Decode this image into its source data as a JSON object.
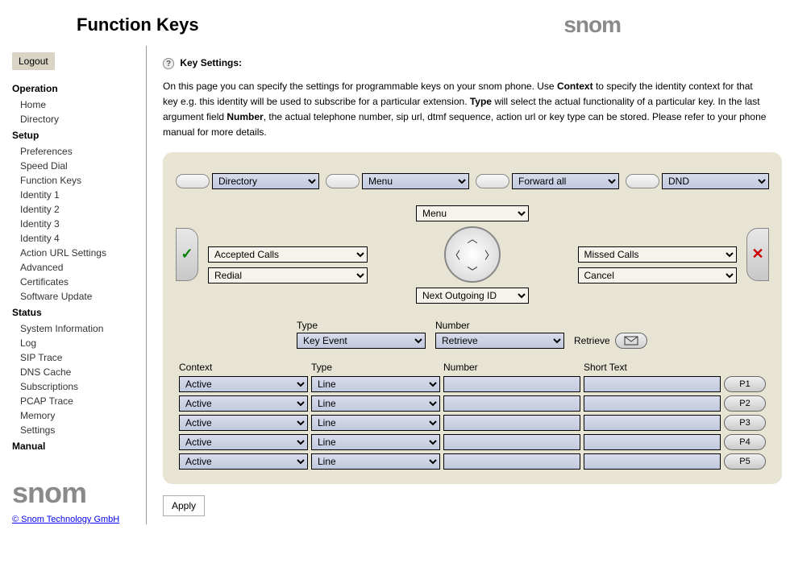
{
  "header": {
    "title": "Function Keys"
  },
  "logout": "Logout",
  "nav": {
    "operation": {
      "title": "Operation",
      "items": [
        "Home",
        "Directory"
      ]
    },
    "setup": {
      "title": "Setup",
      "items": [
        "Preferences",
        "Speed Dial",
        "Function Keys",
        "Identity 1",
        "Identity 2",
        "Identity 3",
        "Identity 4",
        "Action URL Settings",
        "Advanced",
        "Certificates",
        "Software Update"
      ]
    },
    "status": {
      "title": "Status",
      "items": [
        "System Information",
        "Log",
        "SIP Trace",
        "DNS Cache",
        "Subscriptions",
        "PCAP Trace",
        "Memory",
        "Settings"
      ]
    },
    "manual": {
      "title": "Manual"
    }
  },
  "copyright": "© Snom Technology GmbH",
  "section": {
    "heading": "Key Settings:",
    "intro_1": "On this page you can specify the settings for programmable keys on your snom phone. Use ",
    "intro_b1": "Context",
    "intro_2": " to specify the identity context for that key e.g. this identity will be used to subscribe for a particular extension. ",
    "intro_b2": "Type",
    "intro_3": " will select the actual functionality of a particular key. In the last argument field ",
    "intro_b3": "Number",
    "intro_4": ", the actual telephone number, sip url, dtmf sequence, action url or key type can be stored. Please refer to your phone manual for more details."
  },
  "top_fns": [
    "Directory",
    "Menu",
    "Forward all",
    "DND"
  ],
  "cluster": {
    "menu": "Menu",
    "accepted": "Accepted Calls",
    "missed": "Missed Calls",
    "redial": "Redial",
    "cancel": "Cancel",
    "next": "Next Outgoing ID"
  },
  "type_row": {
    "type_label": "Type",
    "type_value": "Key Event",
    "number_label": "Number",
    "number_value": "Retrieve",
    "retrieve_label": "Retrieve"
  },
  "grid": {
    "headers": [
      "Context",
      "Type",
      "Number",
      "Short Text"
    ],
    "rows": [
      {
        "context": "Active",
        "type": "Line",
        "number": "",
        "short": "",
        "btn": "P1"
      },
      {
        "context": "Active",
        "type": "Line",
        "number": "",
        "short": "",
        "btn": "P2"
      },
      {
        "context": "Active",
        "type": "Line",
        "number": "",
        "short": "",
        "btn": "P3"
      },
      {
        "context": "Active",
        "type": "Line",
        "number": "",
        "short": "",
        "btn": "P4"
      },
      {
        "context": "Active",
        "type": "Line",
        "number": "",
        "short": "",
        "btn": "P5"
      }
    ]
  },
  "apply": "Apply",
  "colors": {
    "panel_bg": "#e8e4d4",
    "select_bg": "#c2c8de",
    "text": "#000000"
  }
}
